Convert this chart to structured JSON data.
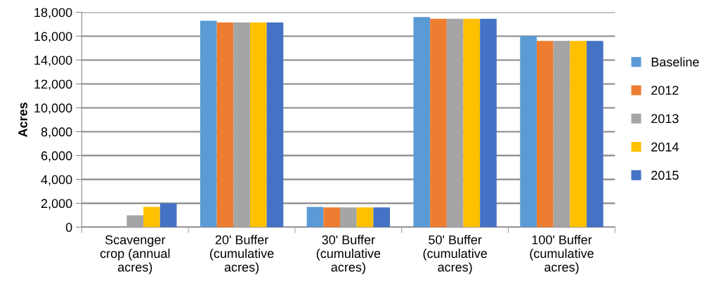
{
  "chart_data": {
    "type": "bar",
    "ylabel": "Acres",
    "categories": [
      "Scavenger crop (annual acres)",
      "20' Buffer (cumulative acres)",
      "30' Buffer (cumulative acres)",
      "50' Buffer (cumulative acres)",
      "100' Buffer (cumulative acres)"
    ],
    "series": [
      {
        "name": "Baseline",
        "color": "#5b9bd5",
        "values": [
          0,
          17300,
          1700,
          17600,
          16000
        ]
      },
      {
        "name": "2012",
        "color": "#ed7d31",
        "values": [
          0,
          17150,
          1650,
          17450,
          15600
        ]
      },
      {
        "name": "2013",
        "color": "#a5a5a5",
        "values": [
          1000,
          17150,
          1650,
          17450,
          15600
        ]
      },
      {
        "name": "2014",
        "color": "#ffc000",
        "values": [
          1700,
          17150,
          1650,
          17450,
          15600
        ]
      },
      {
        "name": "2015",
        "color": "#4472c4",
        "values": [
          2000,
          17150,
          1650,
          17450,
          15600
        ]
      }
    ],
    "ylim": [
      0,
      18000
    ],
    "yticks": [
      {
        "value": 0,
        "label": "0"
      },
      {
        "value": 2000,
        "label": "2,000"
      },
      {
        "value": 4000,
        "label": "4,000"
      },
      {
        "value": 6000,
        "label": "6,000"
      },
      {
        "value": 8000,
        "label": "8,000"
      },
      {
        "value": 10000,
        "label": "10,000"
      },
      {
        "value": 12000,
        "label": "12,000"
      },
      {
        "value": 14000,
        "label": "14,000"
      },
      {
        "value": 16000,
        "label": "16,000"
      },
      {
        "value": 18000,
        "label": "18,000"
      }
    ],
    "grid": "y",
    "legend": "right"
  }
}
